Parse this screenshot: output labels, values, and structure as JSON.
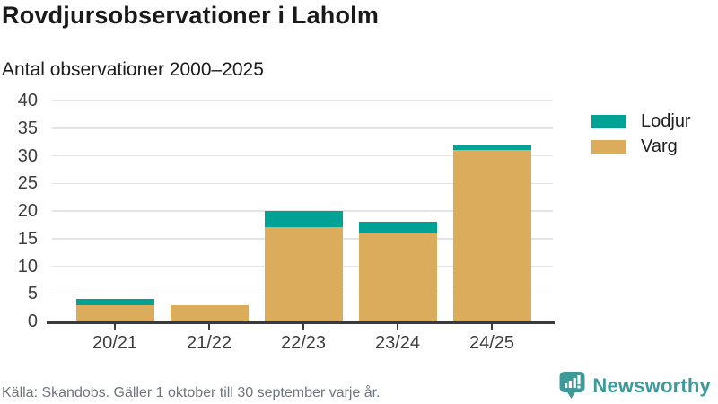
{
  "header": {
    "title": "Rovdjursobservationer i Laholm",
    "subtitle": "Antal observationer 2000–2025"
  },
  "chart_data": {
    "type": "bar",
    "stacked": true,
    "title": "Rovdjursobservationer i Laholm",
    "subtitle": "Antal observationer 2000–2025",
    "categories": [
      "20/21",
      "21/22",
      "22/23",
      "23/24",
      "24/25"
    ],
    "series": [
      {
        "name": "Lodjur",
        "color": "#00a296",
        "values": [
          1,
          0,
          3,
          2,
          1
        ]
      },
      {
        "name": "Varg",
        "color": "#dbac5c",
        "values": [
          3,
          3,
          17,
          16,
          31
        ]
      }
    ],
    "totals": [
      4,
      3,
      20,
      18,
      32
    ],
    "xlabel": "",
    "ylabel": "",
    "ylim": [
      0,
      40
    ],
    "ytick_step": 5,
    "yticks": [
      0,
      5,
      10,
      15,
      20,
      25,
      30,
      35,
      40
    ],
    "grid": true,
    "legend_position": "right"
  },
  "footer": {
    "source": "Källa: Skandobs. Gäller 1 oktober till 30 september varje år.",
    "brand": "Newsworthy"
  },
  "colors": {
    "lodjur": "#00a296",
    "varg": "#dbac5c",
    "brand_teal": "#3d9a99",
    "axis_line": "#3a3a3a",
    "gridline": "#e4e4e4",
    "text_dark": "#1a1a1a",
    "text_muted": "#6e7580"
  }
}
